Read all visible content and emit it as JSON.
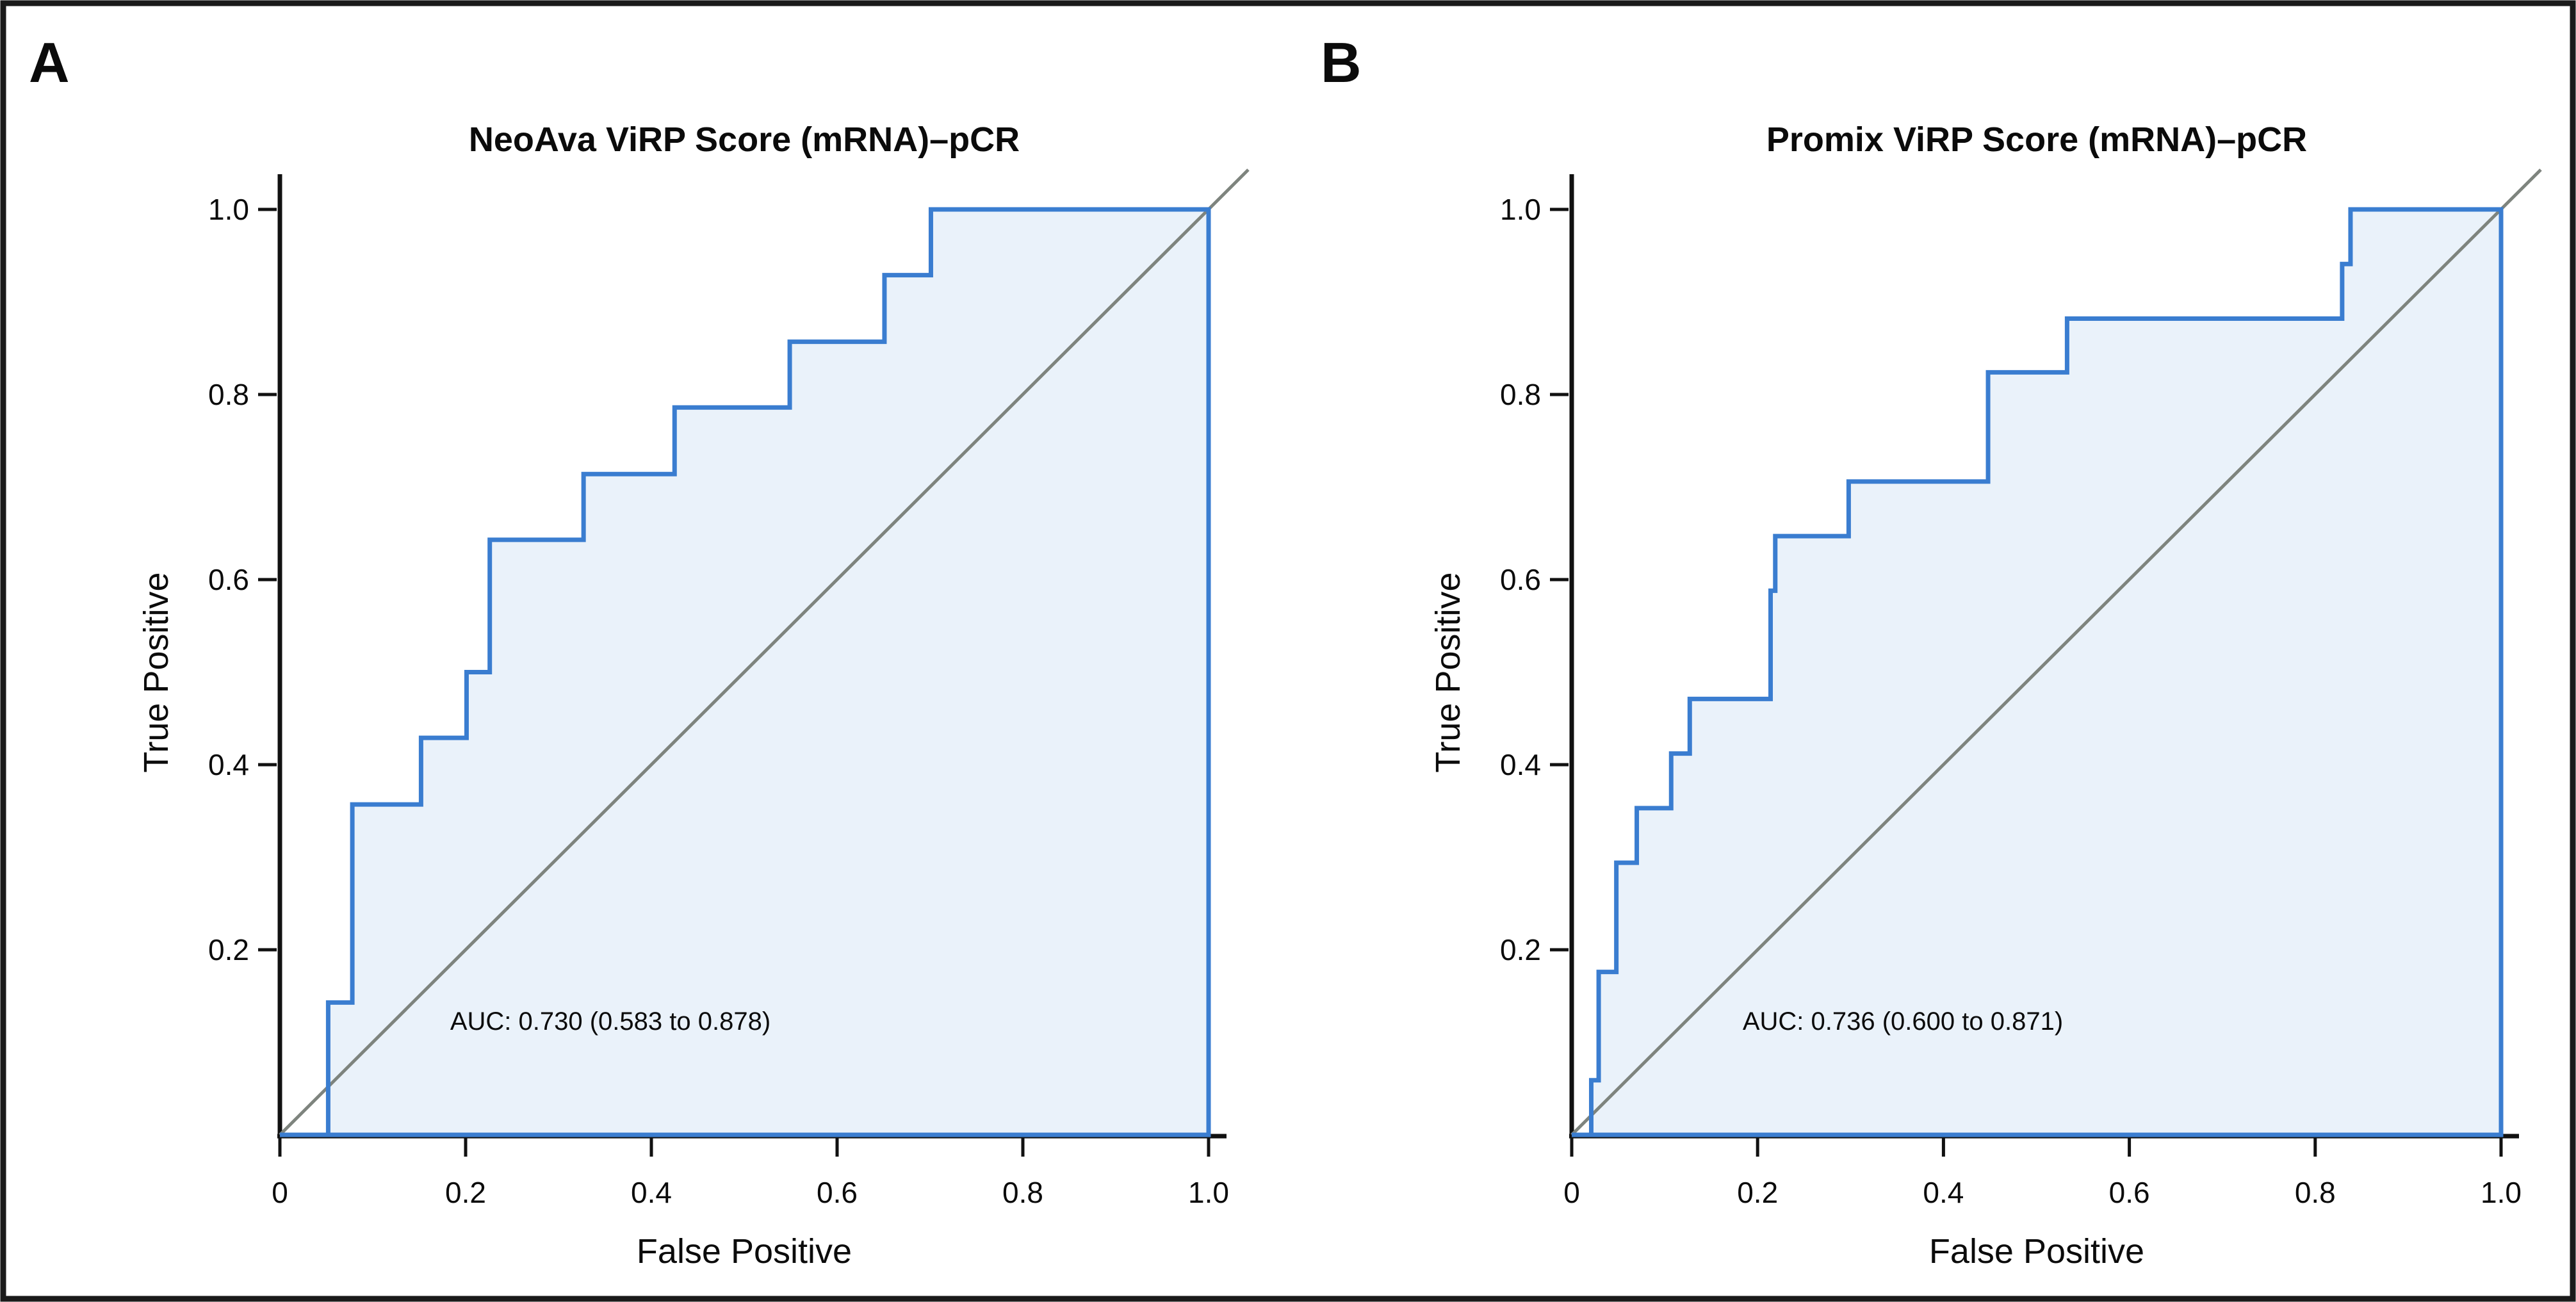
{
  "figure": {
    "background": "#ffffff",
    "border_color": "#1a1a1a",
    "axis_color": "#111111"
  },
  "chart_data": [
    {
      "type": "line",
      "panel_label": "A",
      "title": "NeoAva ViRP Score (mRNA)–pCR",
      "xlabel": "False Positive",
      "ylabel": "True Positive",
      "xlim": [
        0,
        1
      ],
      "ylim": [
        0,
        1
      ],
      "grid": false,
      "x_tick_values": [
        0,
        0.2,
        0.4,
        0.6,
        0.8,
        1.0
      ],
      "x_tick_labels": [
        "0",
        "0.2",
        "0.4",
        "0.6",
        "0.8",
        "1.0"
      ],
      "y_tick_values": [
        0.2,
        0.4,
        0.6,
        0.8,
        1.0
      ],
      "y_tick_labels": [
        "0.2",
        "0.4",
        "0.6",
        "0.8",
        "1.0"
      ],
      "annotation": "AUC: 0.730 (0.583 to 0.878)",
      "auc": 0.73,
      "auc_ci": [
        0.583,
        0.878
      ],
      "series": [
        {
          "name": "ROC step curve",
          "color": "#3a7dd0",
          "fill": "#eaf2fa",
          "points": [
            [
              0,
              0
            ],
            [
              0.052,
              0
            ],
            [
              0.052,
              0.143
            ],
            [
              0.078,
              0.143
            ],
            [
              0.078,
              0.357
            ],
            [
              0.152,
              0.357
            ],
            [
              0.152,
              0.429
            ],
            [
              0.201,
              0.429
            ],
            [
              0.201,
              0.5
            ],
            [
              0.226,
              0.5
            ],
            [
              0.226,
              0.643
            ],
            [
              0.327,
              0.643
            ],
            [
              0.327,
              0.714
            ],
            [
              0.425,
              0.714
            ],
            [
              0.425,
              0.786
            ],
            [
              0.549,
              0.786
            ],
            [
              0.549,
              0.857
            ],
            [
              0.651,
              0.857
            ],
            [
              0.651,
              0.929
            ],
            [
              0.701,
              0.929
            ],
            [
              0.701,
              1
            ],
            [
              1,
              1
            ]
          ]
        },
        {
          "name": "chance reference diagonal",
          "color": "#7e847e",
          "points": [
            [
              0,
              0
            ],
            [
              1,
              1
            ]
          ]
        }
      ]
    },
    {
      "type": "line",
      "panel_label": "B",
      "title": "Promix ViRP Score (mRNA)–pCR",
      "xlabel": "False Positive",
      "ylabel": "True Positive",
      "xlim": [
        0,
        1
      ],
      "ylim": [
        0,
        1
      ],
      "grid": false,
      "x_tick_values": [
        0,
        0.2,
        0.4,
        0.6,
        0.8,
        1.0
      ],
      "x_tick_labels": [
        "0",
        "0.2",
        "0.4",
        "0.6",
        "0.8",
        "1.0"
      ],
      "y_tick_values": [
        0.2,
        0.4,
        0.6,
        0.8,
        1.0
      ],
      "y_tick_labels": [
        "0.2",
        "0.4",
        "0.6",
        "0.8",
        "1.0"
      ],
      "annotation": "AUC: 0.736 (0.600 to 0.871)",
      "auc": 0.736,
      "auc_ci": [
        0.6,
        0.871
      ],
      "series": [
        {
          "name": "ROC step curve",
          "color": "#3a7dd0",
          "fill": "#eaf2fa",
          "points": [
            [
              0,
              0
            ],
            [
              0.021,
              0
            ],
            [
              0.021,
              0.059
            ],
            [
              0.029,
              0.059
            ],
            [
              0.029,
              0.176
            ],
            [
              0.048,
              0.176
            ],
            [
              0.048,
              0.294
            ],
            [
              0.07,
              0.294
            ],
            [
              0.07,
              0.353
            ],
            [
              0.107,
              0.353
            ],
            [
              0.107,
              0.412
            ],
            [
              0.127,
              0.412
            ],
            [
              0.127,
              0.471
            ],
            [
              0.214,
              0.471
            ],
            [
              0.214,
              0.588
            ],
            [
              0.219,
              0.588
            ],
            [
              0.219,
              0.647
            ],
            [
              0.298,
              0.647
            ],
            [
              0.298,
              0.706
            ],
            [
              0.448,
              0.706
            ],
            [
              0.448,
              0.824
            ],
            [
              0.533,
              0.824
            ],
            [
              0.533,
              0.882
            ],
            [
              0.829,
              0.882
            ],
            [
              0.829,
              0.941
            ],
            [
              0.838,
              0.941
            ],
            [
              0.838,
              1
            ],
            [
              1,
              1
            ]
          ]
        },
        {
          "name": "chance reference diagonal",
          "color": "#7e847e",
          "points": [
            [
              0,
              0
            ],
            [
              1,
              1
            ]
          ]
        }
      ]
    }
  ]
}
